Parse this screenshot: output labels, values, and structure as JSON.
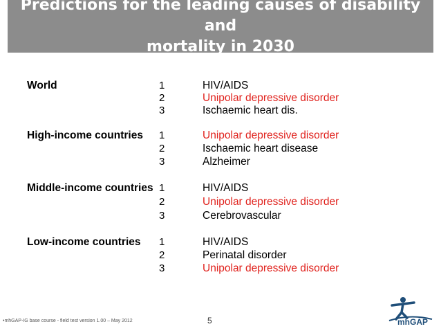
{
  "slide": {
    "title_line1": "Predictions for the leading causes of disability and",
    "title_line2": "mortality in 2030",
    "groups": [
      {
        "region": "World",
        "items": [
          {
            "rank": "1",
            "cause": "HIV/AIDS"
          },
          {
            "rank": "2",
            "cause": "Unipolar depressive disorder"
          },
          {
            "rank": "3",
            "cause": "Ischaemic heart dis."
          }
        ]
      },
      {
        "region": "High-income  countries",
        "items": [
          {
            "rank": "1",
            "cause": "Unipolar depressive disorder"
          },
          {
            "rank": "2",
            "cause": "Ischaemic heart disease"
          },
          {
            "rank": "3",
            "cause": "Alzheimer"
          }
        ]
      },
      {
        "region": "Middle-income countries",
        "items": [
          {
            "rank": "1",
            "cause": "HIV/AIDS"
          },
          {
            "rank": "2",
            "cause": "Unipolar depressive disorder"
          },
          {
            "rank": "3",
            "cause": "Cerebrovascular"
          }
        ]
      },
      {
        "region": "Low-income countries",
        "items": [
          {
            "rank": "1",
            "cause": "HIV/AIDS"
          },
          {
            "rank": "2",
            "cause": "Perinatal disorder"
          },
          {
            "rank": "3",
            "cause": "Unipolar depressive disorder"
          }
        ]
      }
    ],
    "footer_note": "•mhGAP-IG base course -  field test version 1.00 – May 2012",
    "page_number": "5",
    "logo_text": "mhGAP"
  },
  "colors": {
    "title_bg": "#8c8c8c",
    "highlight": "#e0201b",
    "logo_blue": "#1f4e79"
  }
}
